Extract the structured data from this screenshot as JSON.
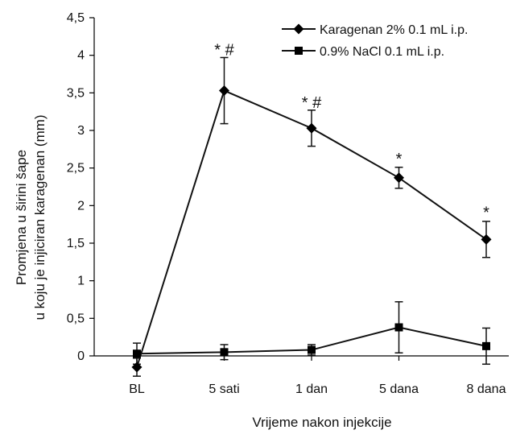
{
  "chart_data": {
    "type": "line",
    "categories": [
      "BL",
      "5 sati",
      "1 dan",
      "5 dana",
      "8 dana"
    ],
    "ylabel_lines": [
      "Promjena u širini šape",
      "u koju je injiciran karagenan (mm)"
    ],
    "xlabel": "Vrijeme nakon injekcije",
    "ylim": [
      0,
      4.5
    ],
    "yticks": [
      0,
      0.5,
      1,
      1.5,
      2,
      2.5,
      3,
      3.5,
      4,
      4.5
    ],
    "ytick_labels": [
      "0",
      "0,5",
      "1",
      "1,5",
      "2",
      "2,5",
      "3",
      "3,5",
      "4",
      "4,5"
    ],
    "grid": false,
    "legend_position": "top-right",
    "series": [
      {
        "name": "Karagenan 2% 0.1 mL i.p.",
        "marker": "diamond",
        "values": [
          -0.15,
          3.53,
          3.03,
          2.37,
          1.55
        ],
        "errors": [
          0.12,
          0.44,
          0.24,
          0.14,
          0.24
        ]
      },
      {
        "name": "0.9% NaCl 0.1 mL i.p.",
        "marker": "square",
        "values": [
          0.03,
          0.05,
          0.08,
          0.38,
          0.13
        ],
        "errors": [
          0.14,
          0.1,
          0.07,
          0.34,
          0.24
        ]
      }
    ],
    "annotations": [
      {
        "category_index": 1,
        "text": "* #",
        "y": 4.0
      },
      {
        "category_index": 2,
        "text": "* #",
        "y": 3.3
      },
      {
        "category_index": 3,
        "text": "*",
        "y": 2.55
      },
      {
        "category_index": 4,
        "text": "*",
        "y": 1.84
      }
    ],
    "colors": {
      "line": "#111111",
      "marker": "#000000"
    }
  }
}
